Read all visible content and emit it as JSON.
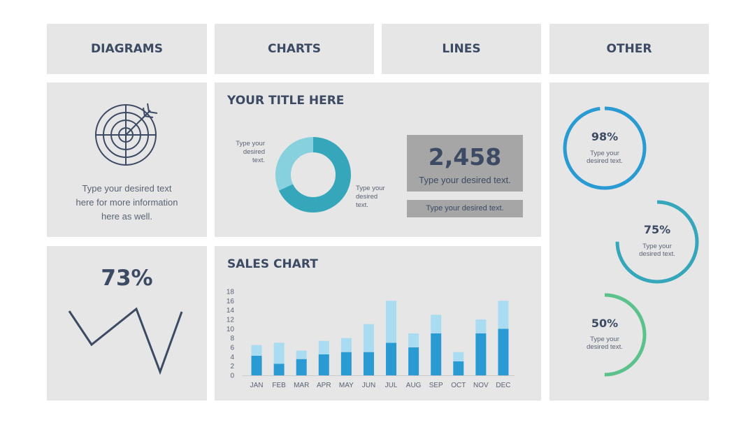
{
  "tabs": [
    {
      "label": "DIAGRAMS"
    },
    {
      "label": "CHARTS"
    },
    {
      "label": "LINES"
    },
    {
      "label": "OTHER"
    }
  ],
  "target_card": {
    "icon": "target-icon",
    "text_lines": [
      "Type your desired text",
      "here for more information",
      "here as well."
    ]
  },
  "title_card": {
    "title": "YOUR TITLE HERE",
    "donut_label_left": [
      "Type your",
      "desired",
      "text."
    ],
    "donut_label_right": [
      "Type your",
      "desired",
      "text."
    ],
    "stat_value": "2,458",
    "stat_caption": "Type your desired text.",
    "stat_subcaption": "Type your desired text.",
    "donut": {
      "segments": [
        {
          "value": 68,
          "color": "#36a7bb"
        },
        {
          "value": 32,
          "color": "#86d1dd"
        }
      ]
    }
  },
  "line_card": {
    "percent": "73%",
    "line_color": "#3c4a63"
  },
  "sales_card": {
    "title": "SALES CHART"
  },
  "rings": [
    {
      "percent": "98%",
      "fraction": 0.98,
      "color": "#2a9ad3",
      "caption": [
        "Type your",
        "desired text."
      ]
    },
    {
      "percent": "75%",
      "fraction": 0.75,
      "color": "#36a7bb",
      "caption": [
        "Type your",
        "desired text."
      ]
    },
    {
      "percent": "50%",
      "fraction": 0.5,
      "color": "#5cc28b",
      "caption": [
        "Type your",
        "desired text."
      ]
    }
  ],
  "chart_data": {
    "type": "bar",
    "title": "SALES CHART",
    "categories": [
      "JAN",
      "FEB",
      "MAR",
      "APR",
      "MAY",
      "JUN",
      "JUL",
      "AUG",
      "SEP",
      "OCT",
      "NOV",
      "DEC"
    ],
    "series": [
      {
        "values": [
          4.2,
          2.5,
          3.5,
          4.5,
          5,
          5,
          7,
          6,
          9,
          3,
          9,
          10
        ],
        "color": "#2a9ad3"
      },
      {
        "values": [
          2.3,
          4.5,
          1.8,
          2.9,
          3,
          6,
          9,
          3,
          4,
          2,
          3,
          6
        ],
        "color": "#a9dcf0"
      }
    ],
    "stacked": true,
    "ylim": [
      0,
      18
    ],
    "yticks": [
      "0",
      "2",
      "4",
      "6",
      "8",
      "10",
      "12",
      "14",
      "16",
      "18"
    ]
  }
}
